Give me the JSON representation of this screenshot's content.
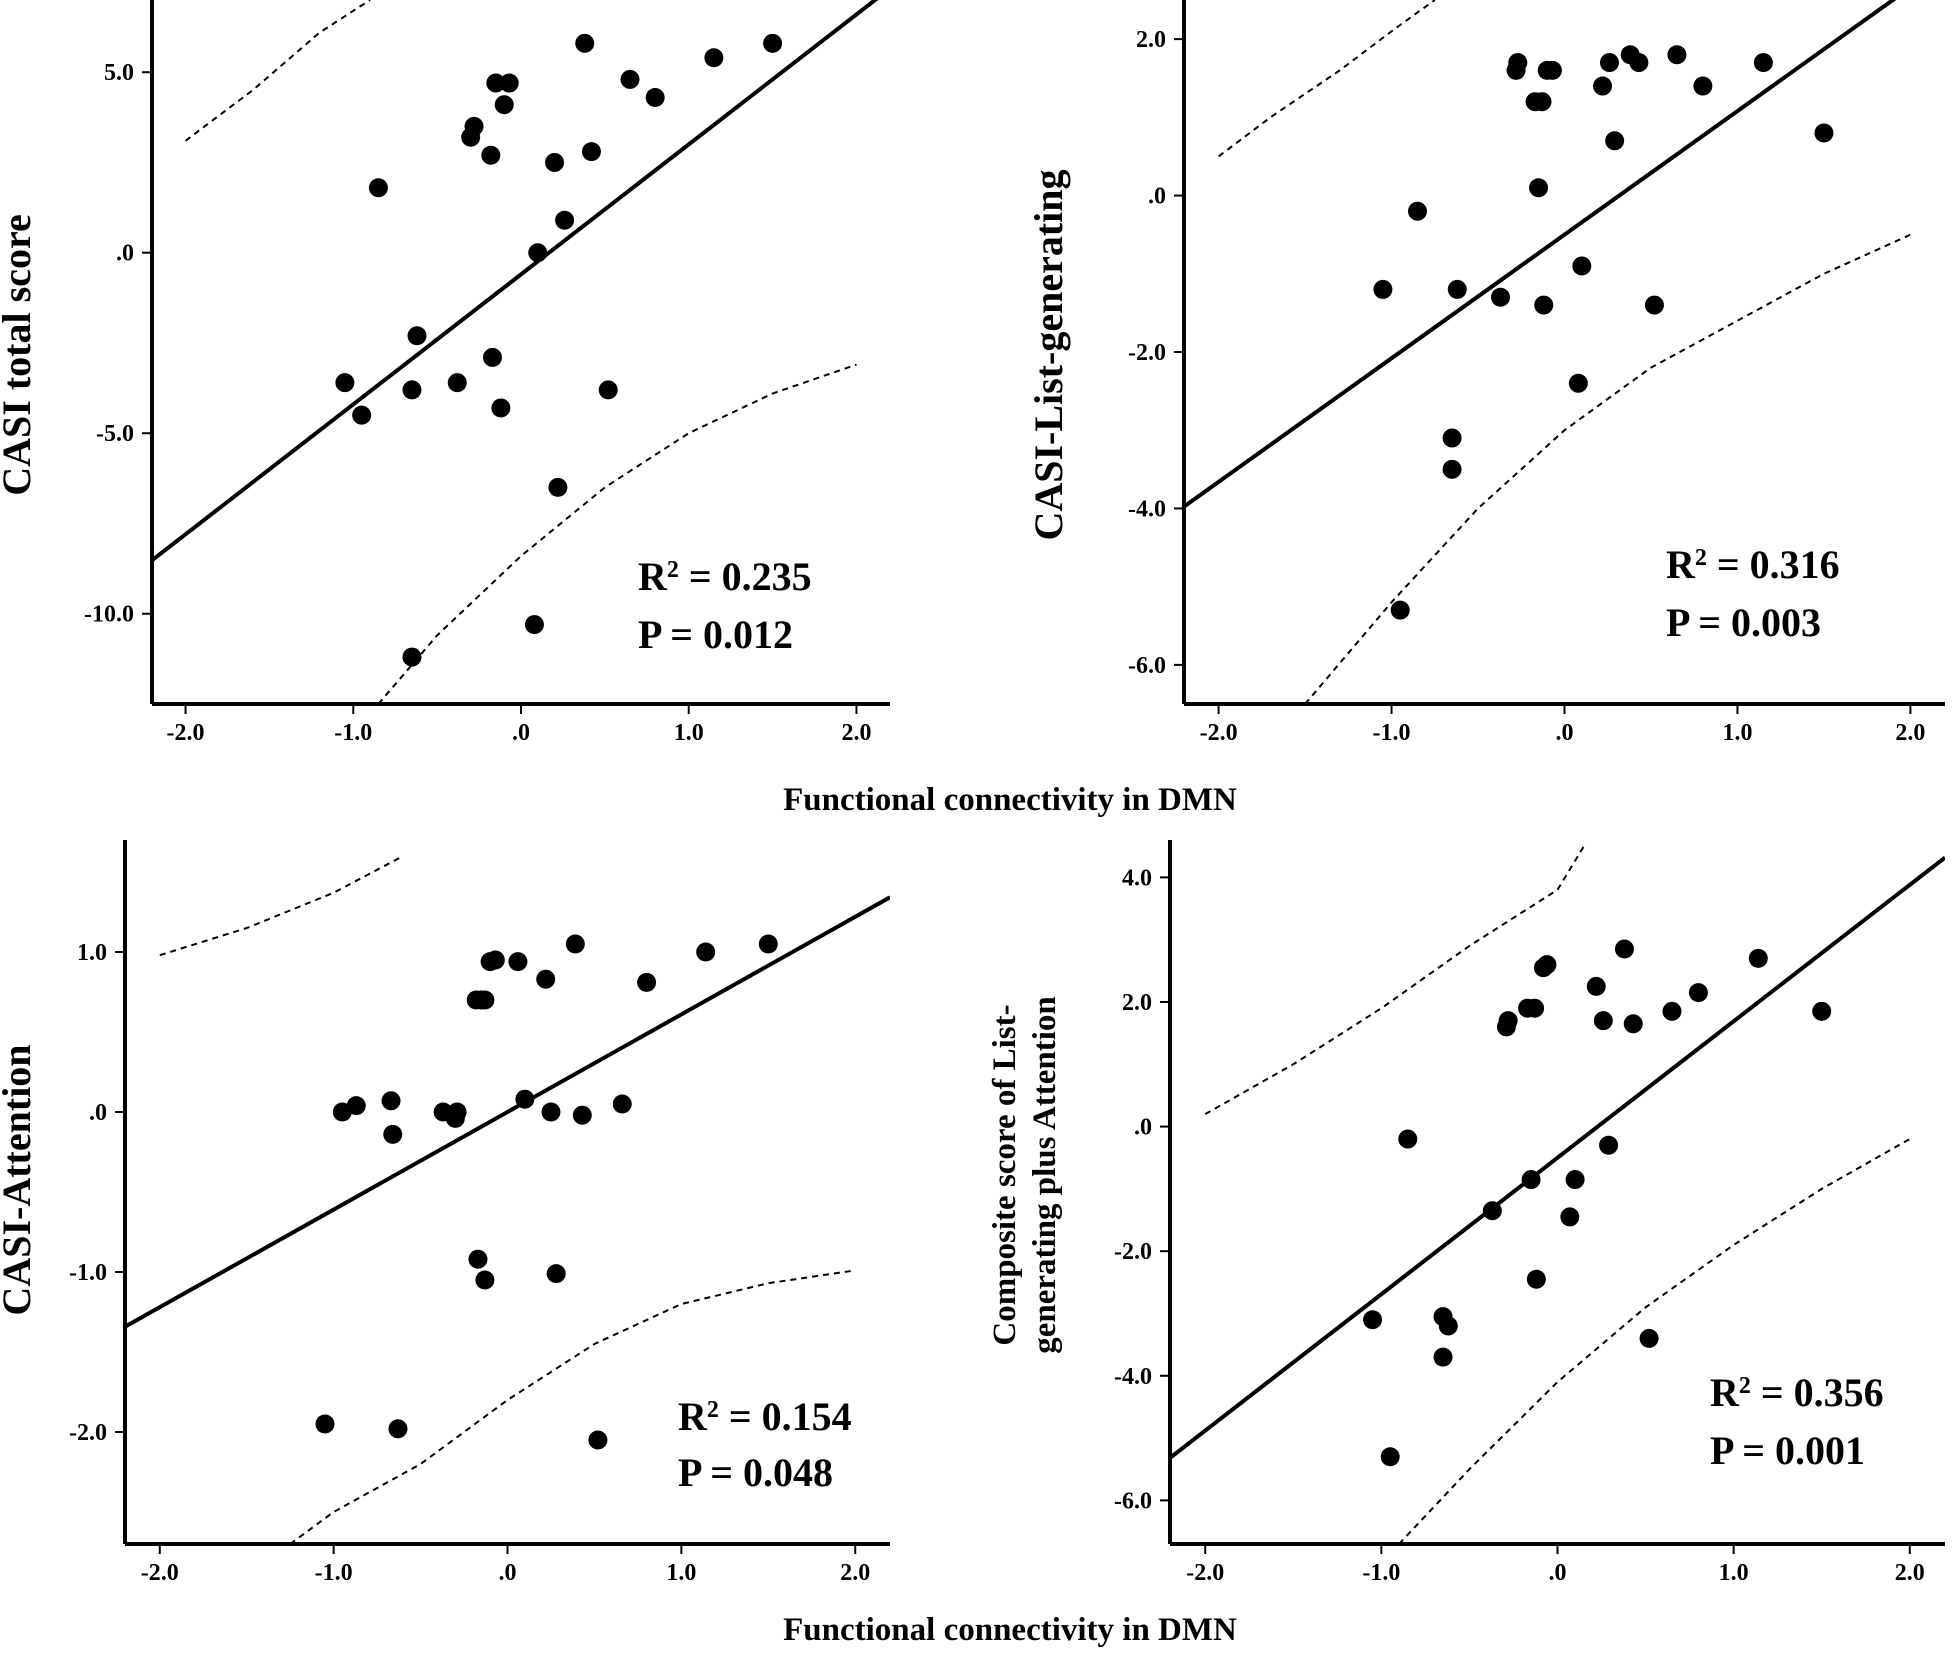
{
  "shared_xlabel": "Functional connectivity in DMN",
  "chart_data": [
    {
      "type": "scatter",
      "id": "total",
      "title": "",
      "ylabel": [
        "CASI total score"
      ],
      "xlabel": "",
      "xlim": [
        -2.2,
        2.2
      ],
      "ylim": [
        -12.5,
        7.0
      ],
      "xticks": [
        -2.0,
        -1.0,
        0.0,
        1.0,
        2.0
      ],
      "xtick_labels": [
        "-2.0",
        "-1.0",
        ".0",
        "1.0",
        "2.0"
      ],
      "yticks": [
        -10.0,
        -5.0,
        0.0,
        5.0
      ],
      "ytick_labels": [
        "-10.0",
        "-5.0",
        ".0",
        "5.0"
      ],
      "fit": {
        "slope": 3.6,
        "intercept": -0.6
      },
      "ci_upper": [
        [
          -2.0,
          3.1
        ],
        [
          -1.6,
          4.5
        ],
        [
          -1.2,
          6.1
        ],
        [
          -0.9,
          7.0
        ]
      ],
      "ci_lower": [
        [
          -0.85,
          -12.5
        ],
        [
          -0.5,
          -10.6
        ],
        [
          0.0,
          -8.4
        ],
        [
          0.5,
          -6.5
        ],
        [
          1.0,
          -5.0
        ],
        [
          1.5,
          -3.9
        ],
        [
          2.0,
          -3.1
        ]
      ],
      "points": [
        [
          -1.05,
          -3.6
        ],
        [
          -0.95,
          -4.5
        ],
        [
          -0.85,
          1.8
        ],
        [
          -0.65,
          -3.8
        ],
        [
          -0.65,
          -11.2
        ],
        [
          -0.62,
          -2.3
        ],
        [
          -0.38,
          -3.6
        ],
        [
          -0.3,
          3.2
        ],
        [
          -0.28,
          3.5
        ],
        [
          -0.18,
          2.7
        ],
        [
          -0.17,
          -2.9
        ],
        [
          -0.15,
          4.7
        ],
        [
          -0.12,
          -4.3
        ],
        [
          -0.1,
          4.1
        ],
        [
          -0.07,
          4.7
        ],
        [
          0.08,
          -10.3
        ],
        [
          0.1,
          0.0
        ],
        [
          0.2,
          2.5
        ],
        [
          0.22,
          -6.5
        ],
        [
          0.26,
          0.9
        ],
        [
          0.38,
          5.8
        ],
        [
          0.42,
          2.8
        ],
        [
          0.52,
          -3.8
        ],
        [
          0.65,
          4.8
        ],
        [
          0.8,
          4.3
        ],
        [
          1.15,
          5.4
        ],
        [
          1.5,
          5.8
        ]
      ],
      "annotation": {
        "r2_label": "R",
        "r2_sup": "2",
        "r2_value": " = 0.235",
        "p_text": "P = 0.012"
      }
    },
    {
      "type": "scatter",
      "id": "list",
      "title": "",
      "ylabel": [
        "CASI-List-generating"
      ],
      "xlabel": "",
      "xlim": [
        -2.2,
        2.2
      ],
      "ylim": [
        -6.5,
        2.5
      ],
      "xticks": [
        -2.0,
        -1.0,
        0.0,
        1.0,
        2.0
      ],
      "xtick_labels": [
        "-2.0",
        "-1.0",
        ".0",
        "1.0",
        "2.0"
      ],
      "yticks": [
        -6.0,
        -4.0,
        -2.0,
        0.0,
        2.0
      ],
      "ytick_labels": [
        "-6.0",
        "-4.0",
        "-2.0",
        ".0",
        "2.0"
      ],
      "fit": {
        "slope": 1.58,
        "intercept": -0.5
      },
      "ci_upper": [
        [
          -2.0,
          0.5
        ],
        [
          -1.7,
          1.0
        ],
        [
          -1.3,
          1.6
        ],
        [
          -1.0,
          2.1
        ],
        [
          -0.75,
          2.5
        ]
      ],
      "ci_lower": [
        [
          -1.5,
          -6.5
        ],
        [
          -1.0,
          -5.2
        ],
        [
          -0.5,
          -4.0
        ],
        [
          0.0,
          -3.0
        ],
        [
          0.5,
          -2.2
        ],
        [
          1.0,
          -1.6
        ],
        [
          1.5,
          -1.0
        ],
        [
          2.0,
          -0.5
        ]
      ],
      "points": [
        [
          -1.05,
          -1.2
        ],
        [
          -0.95,
          -5.3
        ],
        [
          -0.85,
          -0.2
        ],
        [
          -0.65,
          -3.1
        ],
        [
          -0.65,
          -3.5
        ],
        [
          -0.62,
          -1.2
        ],
        [
          -0.37,
          -1.3
        ],
        [
          -0.28,
          1.6
        ],
        [
          -0.27,
          1.7
        ],
        [
          -0.17,
          1.2
        ],
        [
          -0.15,
          0.1
        ],
        [
          -0.13,
          1.2
        ],
        [
          -0.12,
          -1.4
        ],
        [
          -0.1,
          1.6
        ],
        [
          -0.07,
          1.6
        ],
        [
          0.08,
          -2.4
        ],
        [
          0.1,
          -0.9
        ],
        [
          0.22,
          1.4
        ],
        [
          0.26,
          1.7
        ],
        [
          0.29,
          0.7
        ],
        [
          0.38,
          1.8
        ],
        [
          0.43,
          1.7
        ],
        [
          0.52,
          -1.4
        ],
        [
          0.65,
          1.8
        ],
        [
          0.8,
          1.4
        ],
        [
          1.15,
          1.7
        ],
        [
          1.5,
          0.8
        ]
      ],
      "annotation": {
        "r2_label": "R",
        "r2_sup": "2",
        "r2_value": " = 0.316",
        "p_text": "P = 0.003"
      }
    },
    {
      "type": "scatter",
      "id": "attention",
      "title": "",
      "ylabel": [
        "CASI-Attention"
      ],
      "xlabel": "",
      "xlim": [
        -2.2,
        2.2
      ],
      "ylim": [
        -2.7,
        1.7
      ],
      "xticks": [
        -2.0,
        -1.0,
        0.0,
        1.0,
        2.0
      ],
      "xtick_labels": [
        "-2.0",
        "-1.0",
        ".0",
        "1.0",
        "2.0"
      ],
      "yticks": [
        -2.0,
        -1.0,
        0.0,
        1.0
      ],
      "ytick_labels": [
        "-2.0",
        "-1.0",
        ".0",
        "1.0"
      ],
      "fit": {
        "slope": 0.61,
        "intercept": 0.0
      },
      "ci_upper": [
        [
          -2.0,
          0.98
        ],
        [
          -1.5,
          1.15
        ],
        [
          -1.0,
          1.37
        ],
        [
          -0.6,
          1.6
        ]
      ],
      "ci_lower": [
        [
          -1.25,
          -2.7
        ],
        [
          -1.0,
          -2.5
        ],
        [
          -0.5,
          -2.2
        ],
        [
          0.0,
          -1.8
        ],
        [
          0.5,
          -1.45
        ],
        [
          1.0,
          -1.2
        ],
        [
          1.5,
          -1.07
        ],
        [
          2.0,
          -0.99
        ]
      ],
      "points": [
        [
          -1.05,
          -1.95
        ],
        [
          -0.95,
          0.0
        ],
        [
          -0.87,
          0.04
        ],
        [
          -0.67,
          0.07
        ],
        [
          -0.66,
          -0.14
        ],
        [
          -0.63,
          -1.98
        ],
        [
          -0.37,
          0.0
        ],
        [
          -0.3,
          -0.04
        ],
        [
          -0.29,
          0.0
        ],
        [
          -0.18,
          0.7
        ],
        [
          -0.17,
          -0.92
        ],
        [
          -0.15,
          0.7
        ],
        [
          -0.13,
          0.7
        ],
        [
          -0.13,
          -1.05
        ],
        [
          -0.1,
          0.94
        ],
        [
          -0.07,
          0.95
        ],
        [
          0.06,
          0.94
        ],
        [
          0.1,
          0.08
        ],
        [
          0.22,
          0.83
        ],
        [
          0.25,
          0.0
        ],
        [
          0.28,
          -1.01
        ],
        [
          0.39,
          1.05
        ],
        [
          0.43,
          -0.02
        ],
        [
          0.52,
          -2.05
        ],
        [
          0.66,
          0.05
        ],
        [
          0.8,
          0.81
        ],
        [
          1.14,
          1.0
        ],
        [
          1.5,
          1.05
        ]
      ],
      "annotation": {
        "r2_label": "R",
        "r2_sup": "2",
        "r2_value": " = 0.154",
        "p_text": "P = 0.048"
      }
    },
    {
      "type": "scatter",
      "id": "composite",
      "title": "",
      "ylabel": [
        "Composite score of List-",
        "generating plus Attention"
      ],
      "xlabel": "",
      "xlim": [
        -2.2,
        2.2
      ],
      "ylim": [
        -6.7,
        4.6
      ],
      "xticks": [
        -2.0,
        -1.0,
        0.0,
        1.0,
        2.0
      ],
      "xtick_labels": [
        "-2.0",
        "-1.0",
        ".0",
        "1.0",
        "2.0"
      ],
      "yticks": [
        -6.0,
        -4.0,
        -2.0,
        0.0,
        2.0,
        4.0
      ],
      "ytick_labels": [
        "-6.0",
        "-4.0",
        "-2.0",
        ".0",
        "2.0",
        "4.0"
      ],
      "fit": {
        "slope": 2.19,
        "intercept": -0.5
      },
      "ci_upper": [
        [
          -2.0,
          0.2
        ],
        [
          -1.5,
          1.0
        ],
        [
          -1.0,
          1.9
        ],
        [
          -0.5,
          2.9
        ],
        [
          0.0,
          3.8
        ],
        [
          0.15,
          4.5
        ]
      ],
      "ci_lower": [
        [
          -0.9,
          -6.7
        ],
        [
          -0.5,
          -5.5
        ],
        [
          0.0,
          -4.1
        ],
        [
          0.5,
          -2.9
        ],
        [
          1.0,
          -1.9
        ],
        [
          1.5,
          -1.0
        ],
        [
          2.0,
          -0.2
        ]
      ],
      "points": [
        [
          -1.05,
          -3.1
        ],
        [
          -0.95,
          -5.3
        ],
        [
          -0.85,
          -0.2
        ],
        [
          -0.65,
          -3.05
        ],
        [
          -0.65,
          -3.7
        ],
        [
          -0.62,
          -3.2
        ],
        [
          -0.37,
          -1.35
        ],
        [
          -0.29,
          1.6
        ],
        [
          -0.28,
          1.7
        ],
        [
          -0.17,
          1.9
        ],
        [
          -0.15,
          -0.85
        ],
        [
          -0.13,
          1.9
        ],
        [
          -0.12,
          -2.45
        ],
        [
          -0.08,
          2.55
        ],
        [
          -0.06,
          2.6
        ],
        [
          0.07,
          -1.45
        ],
        [
          0.1,
          -0.85
        ],
        [
          0.22,
          2.25
        ],
        [
          0.26,
          1.7
        ],
        [
          0.29,
          -0.3
        ],
        [
          0.38,
          2.85
        ],
        [
          0.43,
          1.65
        ],
        [
          0.52,
          -3.4
        ],
        [
          0.65,
          1.85
        ],
        [
          0.8,
          2.15
        ],
        [
          1.14,
          2.7
        ],
        [
          1.5,
          1.85
        ]
      ],
      "annotation": {
        "r2_label": "R",
        "r2_sup": "2",
        "r2_value": " = 0.356",
        "p_text": "P = 0.001"
      }
    }
  ]
}
